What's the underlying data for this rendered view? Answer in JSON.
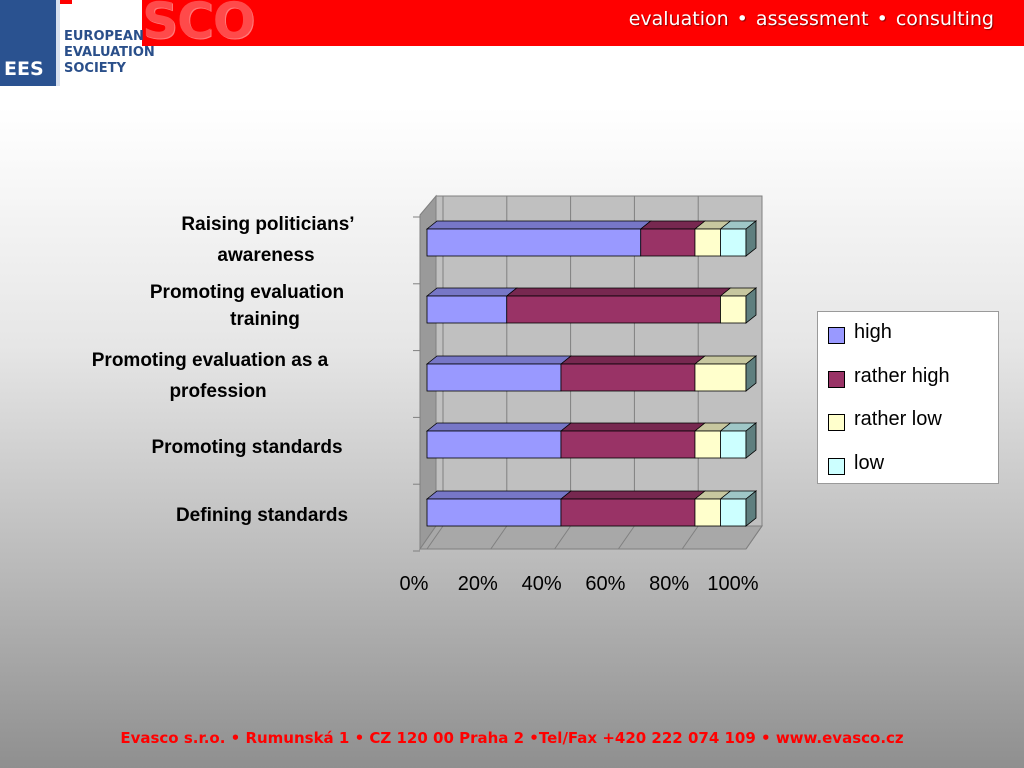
{
  "header": {
    "brand": "SCO",
    "tagline": "evaluation  •  assessment  •  consulting",
    "logo": {
      "abbr": "EES",
      "lines": [
        "EUROPEAN",
        "EVALUATION",
        "SOCIETY"
      ]
    }
  },
  "chart_data": {
    "type": "bar",
    "orientation": "horizontal",
    "stacked": "percent",
    "categories": [
      [
        "Raising politicians’",
        "awareness"
      ],
      [
        "Promoting evaluation",
        "training"
      ],
      [
        "Promoting evaluation as a",
        "profession"
      ],
      [
        "Promoting standards"
      ],
      [
        "Defining standards"
      ]
    ],
    "series": [
      {
        "name": "high",
        "color": "#9999ff",
        "values": [
          67,
          25,
          42,
          42,
          42
        ]
      },
      {
        "name": "rather high",
        "color": "#993366",
        "values": [
          17,
          67,
          42,
          42,
          42
        ]
      },
      {
        "name": "rather low",
        "color": "#ffffcc",
        "values": [
          8,
          8,
          16,
          8,
          8
        ]
      },
      {
        "name": "low",
        "color": "#ccffff",
        "values": [
          8,
          0,
          0,
          8,
          8
        ]
      }
    ],
    "xticks": [
      "0%",
      "20%",
      "40%",
      "60%",
      "80%",
      "100%"
    ],
    "xlim": [
      0,
      100
    ],
    "grid": true,
    "legend_position": "right"
  },
  "footer": {
    "text": "Evasco s.r.o. • Rumunská 1 • CZ 120 00 Praha 2 •Tel/Fax +420 222 074 109 • www.evasco.cz"
  }
}
